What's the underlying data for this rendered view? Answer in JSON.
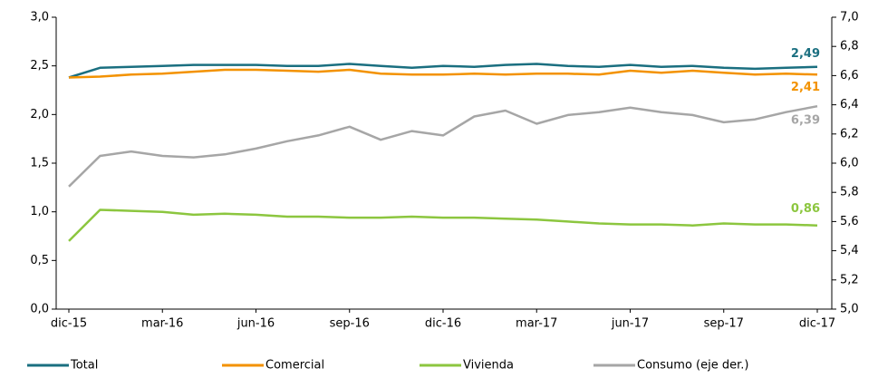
{
  "chart_data": {
    "type": "line",
    "categories": [
      "dic-15",
      null,
      null,
      "mar-16",
      null,
      null,
      "jun-16",
      null,
      null,
      "sep-16",
      null,
      null,
      "dic-16",
      null,
      null,
      "mar-17",
      null,
      null,
      "jun-17",
      null,
      null,
      "sep-17",
      null,
      null,
      "dic-17"
    ],
    "series": [
      {
        "name": "Total",
        "color": "#1a6f80",
        "values": [
          2.38,
          2.48,
          2.49,
          2.5,
          2.51,
          2.51,
          2.51,
          2.5,
          2.5,
          2.52,
          2.5,
          2.48,
          2.5,
          2.49,
          2.51,
          2.52,
          2.5,
          2.49,
          2.51,
          2.49,
          2.5,
          2.48,
          2.47,
          2.48,
          2.49
        ],
        "value_labels": [
          null,
          null,
          null,
          null,
          null,
          null,
          null,
          null,
          null,
          null,
          null,
          null,
          null,
          null,
          null,
          null,
          null,
          null,
          null,
          null,
          null,
          null,
          null,
          null,
          "2,49"
        ]
      },
      {
        "name": "Comercial",
        "color": "#f39200",
        "values": [
          2.38,
          2.39,
          2.41,
          2.42,
          2.44,
          2.46,
          2.46,
          2.45,
          2.44,
          2.46,
          2.42,
          2.41,
          2.41,
          2.42,
          2.41,
          2.42,
          2.42,
          2.41,
          2.45,
          2.43,
          2.45,
          2.43,
          2.41,
          2.42,
          2.41
        ],
        "value_labels": [
          null,
          null,
          null,
          null,
          null,
          null,
          null,
          null,
          null,
          null,
          null,
          null,
          null,
          null,
          null,
          null,
          null,
          null,
          null,
          null,
          null,
          null,
          null,
          null,
          "2,41"
        ]
      },
      {
        "name": "Vivienda",
        "color": "#8cc63f",
        "values": [
          0.7,
          1.02,
          1.01,
          1.0,
          0.97,
          0.98,
          0.97,
          0.95,
          0.95,
          0.94,
          0.94,
          0.95,
          0.94,
          0.94,
          0.93,
          0.92,
          0.9,
          0.88,
          0.87,
          0.87,
          0.86,
          0.88,
          0.87,
          0.87,
          0.86
        ],
        "value_labels": [
          null,
          null,
          null,
          null,
          null,
          null,
          null,
          null,
          null,
          null,
          null,
          null,
          null,
          null,
          null,
          null,
          null,
          null,
          null,
          null,
          null,
          null,
          null,
          null,
          "0,86"
        ]
      },
      {
        "name": "Consumo (eje der.)",
        "color": "#a6a6a6",
        "axis": "y2",
        "values": [
          5.84,
          6.05,
          6.08,
          6.05,
          6.04,
          6.06,
          6.1,
          6.15,
          6.19,
          6.25,
          6.16,
          6.22,
          6.19,
          6.32,
          6.36,
          6.27,
          6.33,
          6.35,
          6.38,
          6.35,
          6.33,
          6.28,
          6.3,
          6.35,
          6.39
        ],
        "value_labels": [
          null,
          null,
          null,
          null,
          null,
          null,
          null,
          null,
          null,
          null,
          null,
          null,
          null,
          null,
          null,
          null,
          null,
          null,
          null,
          null,
          null,
          null,
          null,
          null,
          "6,39"
        ]
      }
    ],
    "ylim": [
      0,
      3
    ],
    "yticks": [
      {
        "value": 0,
        "label": "0,0"
      },
      {
        "value": 0.5,
        "label": "0,5"
      },
      {
        "value": 1,
        "label": "1,0"
      },
      {
        "value": 1.5,
        "label": "1,5"
      },
      {
        "value": 2,
        "label": "2,0"
      },
      {
        "value": 2.5,
        "label": "2,5"
      },
      {
        "value": 3,
        "label": "3,0"
      }
    ],
    "y2lim": [
      5,
      7
    ],
    "y2ticks": [
      {
        "value": 5,
        "label": "5,0"
      },
      {
        "value": 5.2,
        "label": "5,2"
      },
      {
        "value": 5.4,
        "label": "5,4"
      },
      {
        "value": 5.6,
        "label": "5,6"
      },
      {
        "value": 5.8,
        "label": "5,8"
      },
      {
        "value": 6,
        "label": "6,0"
      },
      {
        "value": 6.2,
        "label": "6,2"
      },
      {
        "value": 6.4,
        "label": "6,4"
      },
      {
        "value": 6.6,
        "label": "6,6"
      },
      {
        "value": 6.8,
        "label": "6,8"
      },
      {
        "value": 7,
        "label": "7,0"
      }
    ],
    "grid": false,
    "legend": "bottom"
  }
}
